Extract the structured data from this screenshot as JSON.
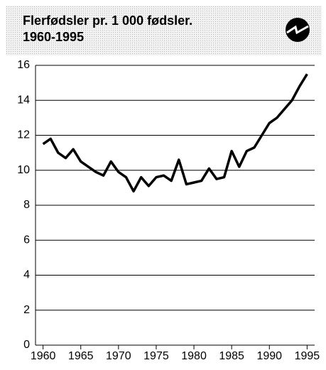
{
  "chart_data": {
    "type": "line",
    "title": "Flerfødsler pr. 1 000 fødsler.",
    "subtitle": "1960-1995",
    "x": [
      1960,
      1961,
      1962,
      1963,
      1964,
      1965,
      1966,
      1967,
      1968,
      1969,
      1970,
      1971,
      1972,
      1973,
      1974,
      1975,
      1976,
      1977,
      1978,
      1979,
      1980,
      1981,
      1982,
      1983,
      1984,
      1985,
      1986,
      1987,
      1988,
      1989,
      1990,
      1991,
      1992,
      1993,
      1994,
      1995
    ],
    "series": [
      {
        "color": "#000000",
        "values": [
          11.5,
          11.8,
          11.0,
          10.7,
          11.2,
          10.5,
          10.2,
          9.9,
          9.7,
          10.5,
          9.9,
          9.6,
          8.8,
          9.6,
          9.1,
          9.6,
          9.7,
          9.4,
          10.6,
          9.2,
          9.3,
          9.4,
          10.1,
          9.5,
          9.6,
          11.1,
          10.2,
          11.1,
          11.3,
          12.0,
          12.7,
          13.0,
          13.5,
          14.0,
          14.8,
          15.5
        ]
      }
    ],
    "xlim": [
      1959,
      1996
    ],
    "xticks": [
      1960,
      1965,
      1970,
      1975,
      1980,
      1985,
      1990,
      1995
    ],
    "ylim": [
      0,
      16
    ],
    "yticks": [
      0,
      2,
      4,
      6,
      8,
      10,
      12,
      14,
      16
    ],
    "grid": true
  }
}
